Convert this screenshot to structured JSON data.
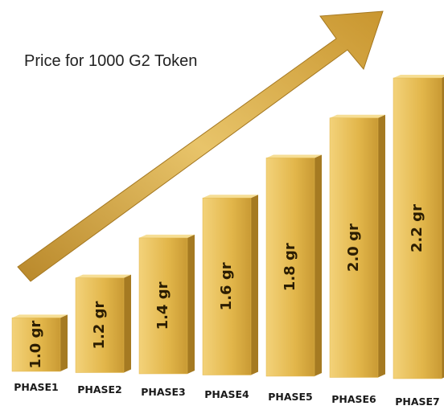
{
  "chart_data": {
    "type": "bar3d",
    "title": "Price for 1000 G2 Token",
    "categories": [
      "PHASE1",
      "PHASE2",
      "PHASE3",
      "PHASE4",
      "PHASE5",
      "PHASE6",
      "PHASE7"
    ],
    "values": [
      1.0,
      1.2,
      1.4,
      1.6,
      1.8,
      2.0,
      2.2
    ],
    "value_labels": [
      "1.0 gr",
      "1.2 gr",
      "1.4 gr",
      "1.6 gr",
      "1.8 gr",
      "2.0 gr",
      "2.2 gr"
    ],
    "color": "#e2b64a",
    "ylim": [
      0.74,
      2.2
    ]
  }
}
